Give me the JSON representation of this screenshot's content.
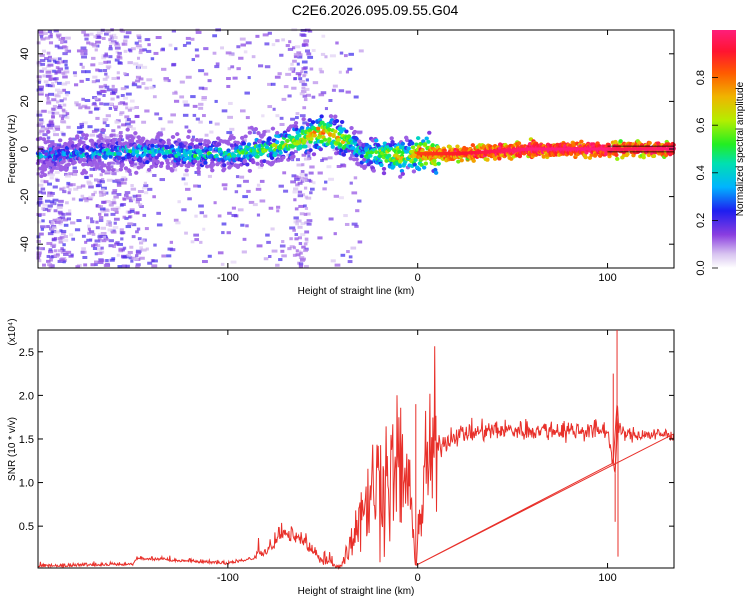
{
  "title": "C2E6.2026.095.09.55.G04",
  "chart_data": [
    {
      "type": "heatmap",
      "xlabel": "Height of straight line (km)",
      "ylabel": "Frequency (Hz)",
      "xlim": [
        -200,
        135
      ],
      "ylim": [
        -50,
        50
      ],
      "xticks": [
        "-100",
        "0",
        "100"
      ],
      "yticks": [
        "-40",
        "-20",
        "0",
        "20",
        "40"
      ],
      "colorbar": {
        "label": "Normalized spectral amplitude",
        "range": [
          0,
          1
        ],
        "ticks": [
          "0.0",
          "0.2",
          "0.4",
          "0.6",
          "0.8"
        ]
      },
      "ridge": {
        "x": [
          -200,
          -180,
          -160,
          -140,
          -120,
          -100,
          -90,
          -80,
          -70,
          -60,
          -55,
          -50,
          -45,
          -40,
          -35,
          -30,
          -20,
          -10,
          -5,
          0,
          20,
          40,
          60,
          80,
          100,
          105,
          135
        ],
        "freq": [
          -3,
          -2,
          -1.5,
          -1,
          -2,
          -2,
          -1,
          0,
          2,
          4,
          6,
          7,
          6,
          4,
          3,
          -2,
          -2,
          -3,
          -3,
          -2,
          -2,
          -1,
          0,
          0,
          0,
          0,
          0
        ],
        "amplitude": [
          0.3,
          0.35,
          0.4,
          0.4,
          0.45,
          0.45,
          0.5,
          0.55,
          0.6,
          0.65,
          0.7,
          0.75,
          0.75,
          0.7,
          0.5,
          0.45,
          0.6,
          0.75,
          0.55,
          0.85,
          0.9,
          0.95,
          1.0,
          1.0,
          1.0,
          0.95,
          1.0
        ]
      }
    },
    {
      "type": "line",
      "xlabel": "Height of straight line (km)",
      "ylabel": "SNR (10 * v/v)",
      "scale_label": "(x10⁴)",
      "xlim": [
        -200,
        135
      ],
      "ylim": [
        0.02,
        2.75
      ],
      "xticks": [
        "-100",
        "0",
        "100"
      ],
      "yticks": [
        "0.5",
        "1.0",
        "1.5",
        "2.0",
        "2.5"
      ],
      "color": "#e8302a",
      "envelope": {
        "x": [
          -200,
          -150,
          -148,
          -100,
          -80,
          -70,
          -60,
          -50,
          -40,
          -35,
          -30,
          -25,
          -20,
          -15,
          -10,
          -5,
          -1,
          0,
          5,
          10,
          20,
          40,
          60,
          80,
          95,
          100,
          104,
          105,
          106,
          110,
          135
        ],
        "y": [
          0.03,
          0.05,
          0.12,
          0.06,
          0.15,
          0.35,
          0.25,
          0.04,
          0.05,
          0.35,
          0.7,
          0.85,
          1.05,
          1.05,
          1.15,
          1.0,
          0.05,
          0.4,
          1.2,
          1.4,
          1.55,
          1.6,
          1.6,
          1.6,
          1.6,
          1.6,
          1.1,
          1.9,
          1.6,
          1.55,
          1.55
        ]
      },
      "spikes": [
        {
          "x": -1,
          "y": 1.9
        },
        {
          "x": 103,
          "y": 2.25
        },
        {
          "x": 105,
          "y": 2.75
        },
        {
          "x": 105.5,
          "y": 0.15
        },
        {
          "x": 104,
          "y": 0.55
        }
      ]
    }
  ]
}
